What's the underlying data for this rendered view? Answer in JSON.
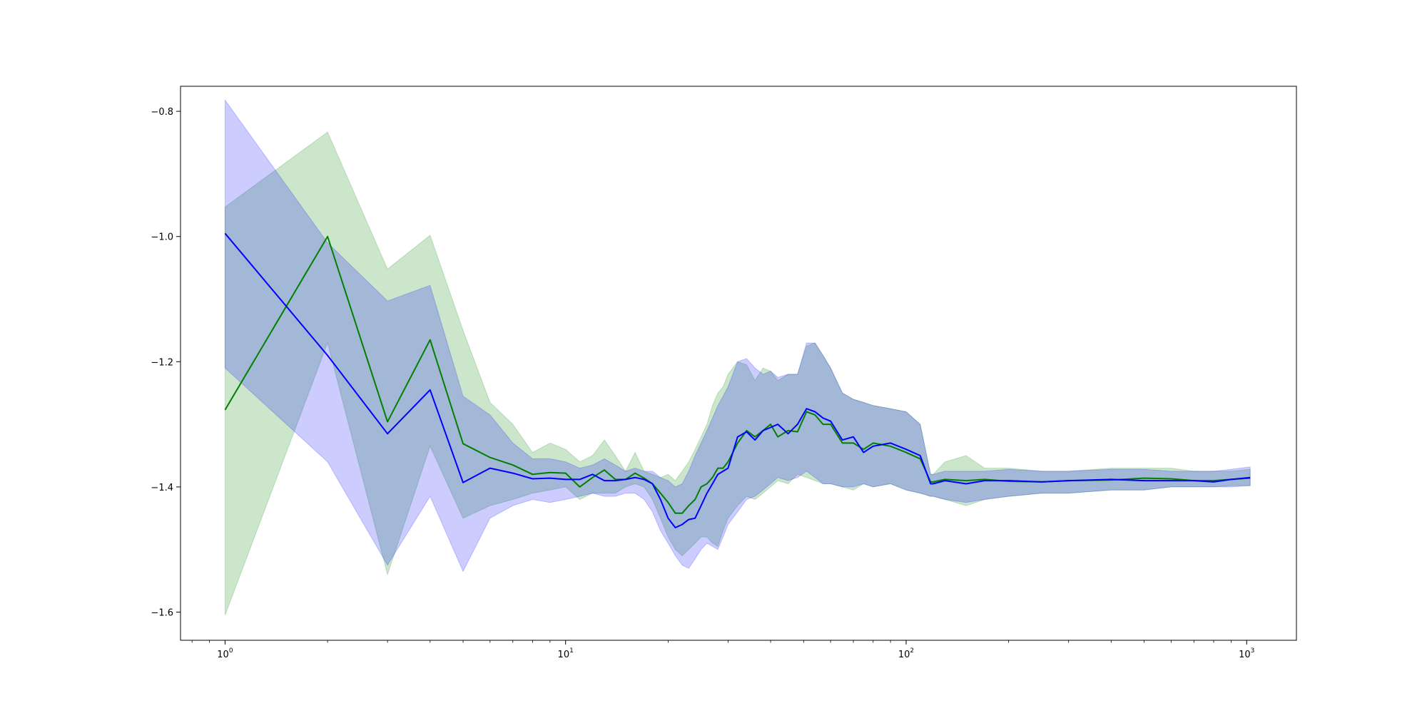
{
  "chart_data": {
    "type": "line",
    "title": "",
    "xlabel": "",
    "ylabel": "",
    "xscale": "log",
    "xlim": [
      0.74,
      1400
    ],
    "ylim": [
      -1.645,
      -0.76
    ],
    "grid": false,
    "legend": "none",
    "xticks": [
      {
        "base": "10",
        "exp": "0",
        "value": 1
      },
      {
        "base": "10",
        "exp": "1",
        "value": 10
      },
      {
        "base": "10",
        "exp": "2",
        "value": 100
      },
      {
        "base": "10",
        "exp": "3",
        "value": 1000
      }
    ],
    "yticks": [
      {
        "label": "−0.8",
        "value": -0.8
      },
      {
        "label": "−1.0",
        "value": -1.0
      },
      {
        "label": "−1.2",
        "value": -1.2
      },
      {
        "label": "−1.4",
        "value": -1.4
      },
      {
        "label": "−1.6",
        "value": -1.6
      }
    ],
    "x": [
      1,
      2,
      3,
      4,
      5,
      6,
      7,
      8,
      9,
      10,
      11,
      12,
      13,
      14,
      15,
      16,
      17,
      18,
      19,
      20,
      21,
      22,
      23,
      24,
      25,
      26,
      27,
      28,
      29,
      30,
      32,
      34,
      36,
      38,
      40,
      42,
      45,
      48,
      51,
      54,
      57,
      60,
      65,
      70,
      75,
      80,
      90,
      100,
      110,
      118,
      120,
      130,
      150,
      170,
      200,
      250,
      300,
      400,
      500,
      600,
      700,
      800,
      900,
      1024
    ],
    "series": [
      {
        "color": "#008000",
        "band_color": "#008000",
        "band_opacity": 0.2,
        "values": [
          -1.277,
          -1.0,
          -1.296,
          -1.165,
          -1.331,
          -1.353,
          -1.365,
          -1.38,
          -1.377,
          -1.378,
          -1.4,
          -1.385,
          -1.373,
          -1.388,
          -1.388,
          -1.378,
          -1.386,
          -1.395,
          -1.41,
          -1.425,
          -1.442,
          -1.442,
          -1.43,
          -1.42,
          -1.4,
          -1.395,
          -1.385,
          -1.37,
          -1.37,
          -1.36,
          -1.33,
          -1.31,
          -1.32,
          -1.31,
          -1.3,
          -1.32,
          -1.31,
          -1.312,
          -1.28,
          -1.285,
          -1.3,
          -1.3,
          -1.33,
          -1.33,
          -1.34,
          -1.33,
          -1.335,
          -1.345,
          -1.355,
          -1.392,
          -1.392,
          -1.388,
          -1.39,
          -1.388,
          -1.391,
          -1.392,
          -1.39,
          -1.389,
          -1.386,
          -1.387,
          -1.39,
          -1.39,
          -1.388,
          -1.386
        ],
        "lower": [
          -1.605,
          -1.17,
          -1.54,
          -1.335,
          -1.45,
          -1.43,
          -1.42,
          -1.41,
          -1.405,
          -1.4,
          -1.42,
          -1.41,
          -1.41,
          -1.41,
          -1.4,
          -1.395,
          -1.4,
          -1.42,
          -1.45,
          -1.48,
          -1.5,
          -1.51,
          -1.5,
          -1.49,
          -1.48,
          -1.48,
          -1.49,
          -1.495,
          -1.47,
          -1.45,
          -1.43,
          -1.415,
          -1.42,
          -1.41,
          -1.4,
          -1.39,
          -1.395,
          -1.38,
          -1.385,
          -1.39,
          -1.395,
          -1.395,
          -1.4,
          -1.405,
          -1.395,
          -1.4,
          -1.395,
          -1.405,
          -1.41,
          -1.415,
          -1.415,
          -1.42,
          -1.43,
          -1.42,
          -1.415,
          -1.41,
          -1.41,
          -1.405,
          -1.405,
          -1.4,
          -1.4,
          -1.4,
          -1.398,
          -1.398
        ],
        "upper": [
          -0.953,
          -0.833,
          -1.052,
          -0.998,
          -1.15,
          -1.265,
          -1.3,
          -1.345,
          -1.33,
          -1.34,
          -1.36,
          -1.35,
          -1.325,
          -1.35,
          -1.375,
          -1.345,
          -1.375,
          -1.38,
          -1.385,
          -1.38,
          -1.39,
          -1.375,
          -1.36,
          -1.34,
          -1.32,
          -1.3,
          -1.27,
          -1.25,
          -1.24,
          -1.22,
          -1.2,
          -1.205,
          -1.23,
          -1.21,
          -1.215,
          -1.23,
          -1.22,
          -1.22,
          -1.175,
          -1.17,
          -1.19,
          -1.21,
          -1.25,
          -1.26,
          -1.265,
          -1.27,
          -1.275,
          -1.28,
          -1.3,
          -1.38,
          -1.38,
          -1.36,
          -1.35,
          -1.37,
          -1.37,
          -1.375,
          -1.375,
          -1.37,
          -1.37,
          -1.37,
          -1.375,
          -1.375,
          -1.375,
          -1.372
        ]
      },
      {
        "color": "#0000ff",
        "band_color": "#0000ff",
        "band_opacity": 0.2,
        "values": [
          -0.995,
          -1.19,
          -1.315,
          -1.245,
          -1.393,
          -1.37,
          -1.378,
          -1.387,
          -1.386,
          -1.388,
          -1.388,
          -1.38,
          -1.39,
          -1.39,
          -1.388,
          -1.385,
          -1.388,
          -1.395,
          -1.42,
          -1.45,
          -1.465,
          -1.46,
          -1.452,
          -1.45,
          -1.43,
          -1.41,
          -1.395,
          -1.38,
          -1.375,
          -1.37,
          -1.32,
          -1.312,
          -1.325,
          -1.31,
          -1.305,
          -1.3,
          -1.315,
          -1.3,
          -1.275,
          -1.28,
          -1.29,
          -1.295,
          -1.325,
          -1.32,
          -1.345,
          -1.335,
          -1.33,
          -1.34,
          -1.35,
          -1.395,
          -1.395,
          -1.39,
          -1.395,
          -1.39,
          -1.39,
          -1.392,
          -1.39,
          -1.388,
          -1.39,
          -1.39,
          -1.39,
          -1.392,
          -1.388,
          -1.385
        ],
        "lower": [
          -1.21,
          -1.36,
          -1.525,
          -1.415,
          -1.535,
          -1.45,
          -1.43,
          -1.42,
          -1.425,
          -1.42,
          -1.415,
          -1.41,
          -1.415,
          -1.415,
          -1.41,
          -1.41,
          -1.42,
          -1.44,
          -1.47,
          -1.49,
          -1.51,
          -1.525,
          -1.53,
          -1.515,
          -1.5,
          -1.49,
          -1.495,
          -1.5,
          -1.48,
          -1.46,
          -1.44,
          -1.42,
          -1.415,
          -1.405,
          -1.395,
          -1.385,
          -1.39,
          -1.385,
          -1.375,
          -1.385,
          -1.395,
          -1.395,
          -1.4,
          -1.4,
          -1.395,
          -1.4,
          -1.395,
          -1.405,
          -1.41,
          -1.415,
          -1.415,
          -1.42,
          -1.425,
          -1.42,
          -1.415,
          -1.41,
          -1.41,
          -1.405,
          -1.405,
          -1.4,
          -1.4,
          -1.4,
          -1.4,
          -1.398
        ],
        "upper": [
          -0.782,
          -1.01,
          -1.103,
          -1.078,
          -1.255,
          -1.285,
          -1.33,
          -1.355,
          -1.355,
          -1.36,
          -1.37,
          -1.365,
          -1.355,
          -1.365,
          -1.375,
          -1.37,
          -1.375,
          -1.375,
          -1.385,
          -1.39,
          -1.4,
          -1.395,
          -1.375,
          -1.35,
          -1.33,
          -1.31,
          -1.29,
          -1.27,
          -1.255,
          -1.24,
          -1.2,
          -1.195,
          -1.21,
          -1.22,
          -1.215,
          -1.225,
          -1.22,
          -1.22,
          -1.17,
          -1.17,
          -1.19,
          -1.21,
          -1.25,
          -1.26,
          -1.265,
          -1.27,
          -1.275,
          -1.28,
          -1.3,
          -1.38,
          -1.38,
          -1.375,
          -1.375,
          -1.375,
          -1.372,
          -1.375,
          -1.375,
          -1.372,
          -1.372,
          -1.375,
          -1.375,
          -1.375,
          -1.372,
          -1.368
        ]
      }
    ]
  }
}
